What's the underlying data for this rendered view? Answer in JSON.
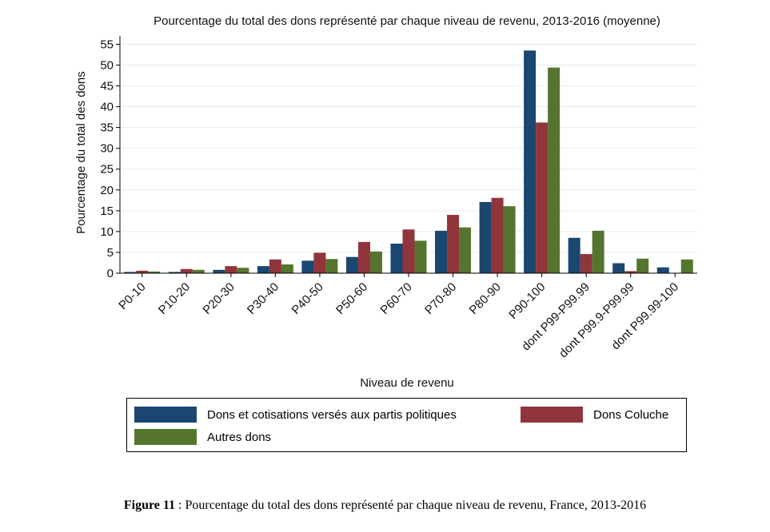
{
  "chart_data": {
    "type": "bar",
    "title": "Pourcentage du total des dons représenté par chaque niveau de revenu, 2013-2016 (moyenne)",
    "xlabel": "Niveau de revenu",
    "ylabel": "Pourcentage du total des dons",
    "ylim": [
      0,
      57
    ],
    "yticks": [
      0,
      5,
      10,
      15,
      20,
      25,
      30,
      35,
      40,
      45,
      50,
      55
    ],
    "grid": true,
    "legend_placement": "bottom",
    "categories": [
      "P0-10",
      "P10-20",
      "P20-30",
      "P30-40",
      "P40-50",
      "P50-60",
      "P60-70",
      "P70-80",
      "P80-90",
      "P90-100",
      "dont P99-P99.99",
      "dont P99.9-P99.99",
      "dont P99.99-100"
    ],
    "series": [
      {
        "name": "Dons et cotisations versés aux partis politiques",
        "color": "#1a476f",
        "values": [
          0.3,
          0.3,
          0.8,
          1.7,
          3.0,
          3.9,
          7.1,
          10.2,
          17.1,
          53.5,
          8.5,
          2.4,
          1.4
        ]
      },
      {
        "name": "Dons Coluche",
        "color": "#90353b",
        "values": [
          0.6,
          1.0,
          1.7,
          3.3,
          4.9,
          7.5,
          10.5,
          14.0,
          18.1,
          36.2,
          4.6,
          0.5,
          0.1
        ]
      },
      {
        "name": "Autres dons",
        "color": "#55752f",
        "values": [
          0.4,
          0.8,
          1.3,
          2.1,
          3.4,
          5.2,
          7.8,
          11.0,
          16.1,
          49.4,
          10.2,
          3.5,
          3.3
        ]
      }
    ]
  },
  "caption": {
    "label": "Figure 11",
    "text": " : Pourcentage du total des dons représenté par chaque niveau de revenu, France, 2013-2016"
  }
}
